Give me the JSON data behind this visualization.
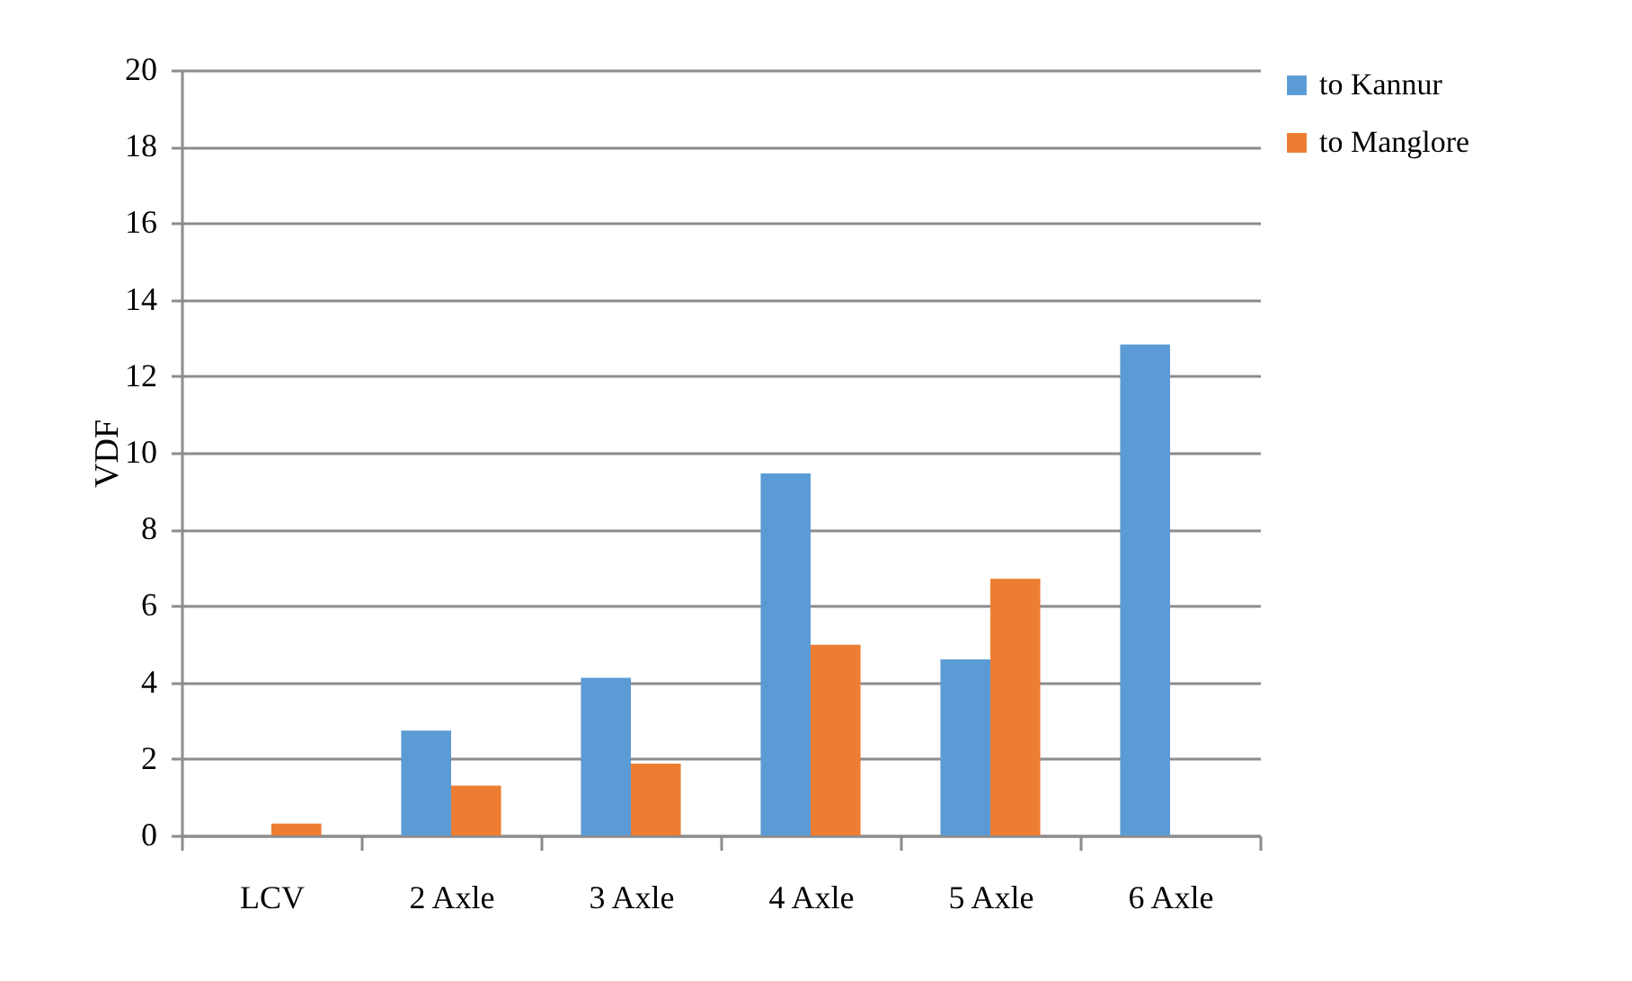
{
  "chart_data": {
    "type": "bar",
    "categories": [
      "LCV",
      "2 Axle",
      "3 Axle",
      "4 Axle",
      "5 Axle",
      "6 Axle"
    ],
    "series": [
      {
        "name": "to Kannur",
        "color": "#5b9bd5",
        "values": [
          null,
          2.74,
          4.12,
          9.46,
          4.6,
          12.83
        ]
      },
      {
        "name": "to Manglore",
        "color": "#ed7d31",
        "values": [
          0.31,
          1.3,
          1.88,
          4.98,
          6.71,
          null
        ]
      }
    ],
    "ylabel": "VDF",
    "ylim": [
      0,
      20
    ],
    "yticks": [
      0,
      2,
      4,
      6,
      8,
      10,
      12,
      14,
      16,
      18,
      20
    ],
    "grid": "y",
    "legend": "right"
  }
}
